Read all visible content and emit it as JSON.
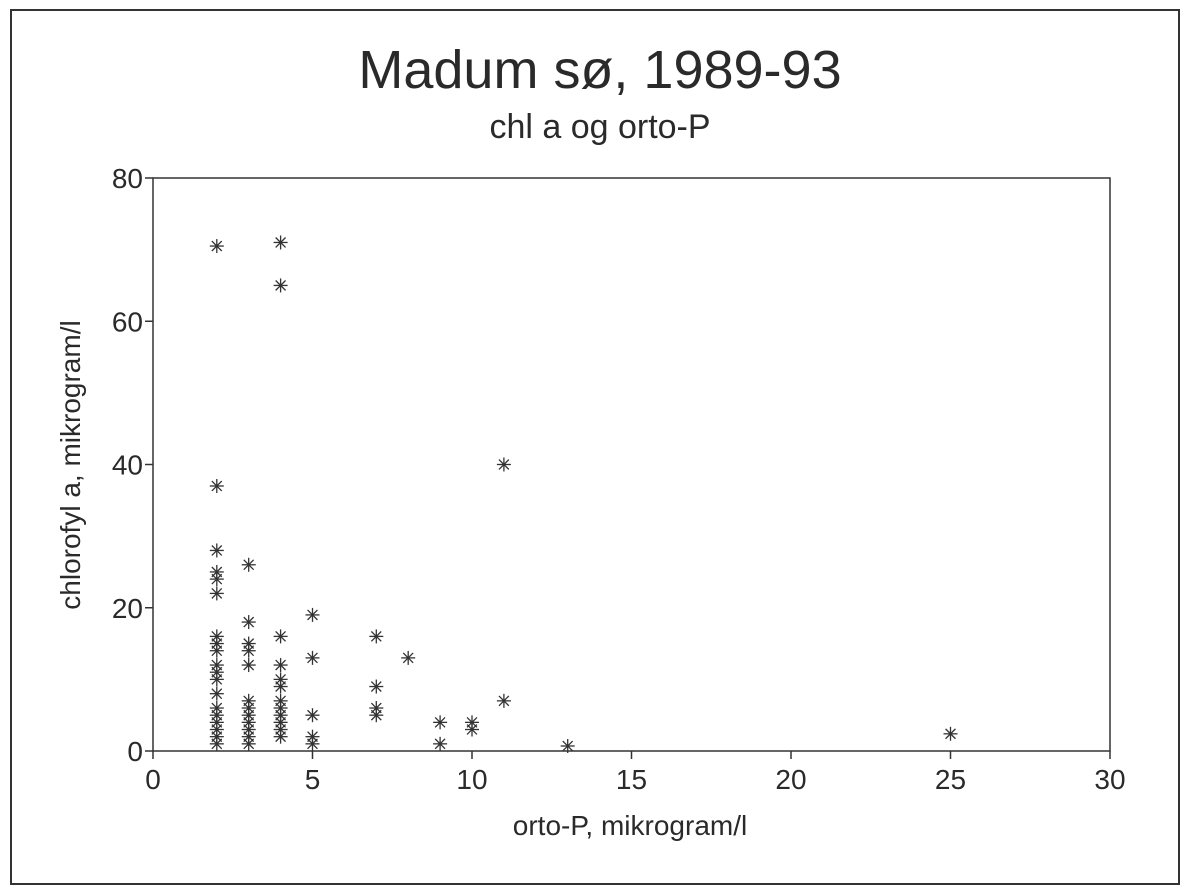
{
  "chart_data": {
    "type": "scatter",
    "title": "Madum sø, 1989-93",
    "subtitle": "chl a og orto-P",
    "x_label": "orto-P, mikrogram/l",
    "y_label": "chlorofyl a, mikrogram/l",
    "xlim": [
      0,
      30
    ],
    "xticks": [
      0,
      5,
      10,
      15,
      20,
      25,
      30
    ],
    "ylim": [
      0,
      80
    ],
    "yticks": [
      0,
      20,
      40,
      60,
      80
    ],
    "grid": false,
    "marker": "asterisk",
    "color": "#333333",
    "series": [
      {
        "name": "chl a",
        "x": [
          2,
          2,
          2,
          2,
          2,
          2,
          2,
          2,
          2,
          2,
          2,
          2,
          2,
          2,
          2,
          2,
          2,
          2,
          2,
          3,
          3,
          3,
          3,
          3,
          3,
          3,
          3,
          3,
          3,
          3,
          3,
          4,
          4,
          4,
          4,
          4,
          4,
          4,
          4,
          4,
          4,
          4,
          4,
          5,
          5,
          5,
          5,
          5,
          7,
          7,
          7,
          7,
          8,
          9,
          9,
          10,
          10,
          11,
          11,
          13,
          25
        ],
        "values": [
          70.5,
          37,
          28,
          25,
          24,
          22,
          16,
          15,
          14,
          12,
          11,
          10,
          8,
          6,
          5,
          4,
          3,
          2,
          1,
          26,
          18,
          15,
          14,
          12,
          7,
          6,
          5,
          4,
          3,
          2,
          1,
          71,
          65,
          16,
          12,
          10,
          9,
          7,
          6,
          5,
          4,
          3,
          2,
          19,
          13,
          5,
          2,
          1,
          16,
          9,
          6,
          5,
          13,
          4,
          1,
          4,
          3,
          40,
          7,
          0.7,
          2.4
        ]
      }
    ]
  }
}
